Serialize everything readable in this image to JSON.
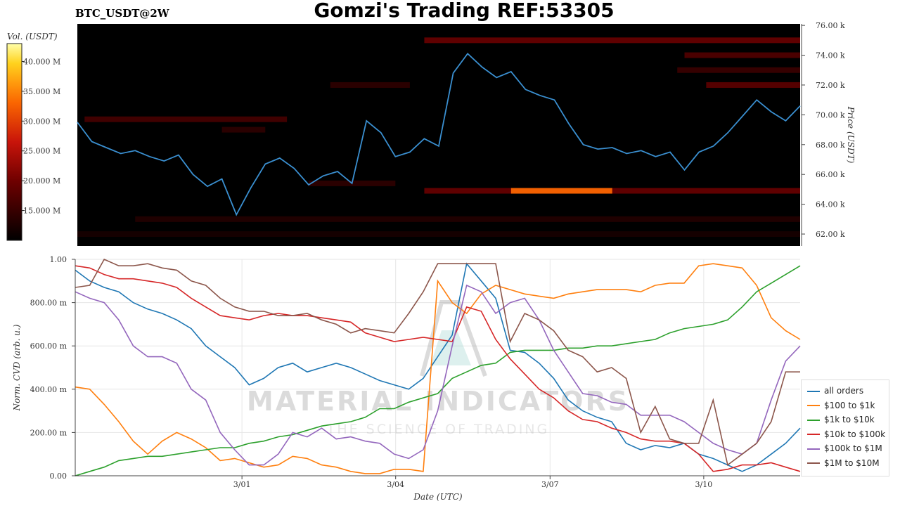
{
  "pair_label": "BTC_USDT@2W",
  "title": "Gomzi's Trading REF:53305",
  "watermark": {
    "main": "MATERIAL INDICATORS",
    "sub": "THE SCIENCE OF TRADING"
  },
  "colors": {
    "all_orders": "#1f77b4",
    "s100_1k": "#ff7f0e",
    "s1k_10k": "#2ca02c",
    "s10k_100k": "#d62728",
    "s100k_1m": "#9467bd",
    "s1m_10m": "#8c564b",
    "price_line": "#3a8fd0",
    "heatmap_bg": "#000000"
  },
  "chart_data": [
    {
      "type": "heatmap",
      "colorbar": {
        "label": "Vol. (USDT)",
        "ticks": [
          "40.000 M",
          "35.000 M",
          "30.000 M",
          "25.000 M",
          "20.000 M",
          "15.000 M"
        ],
        "range": [
          10,
          43
        ]
      },
      "ylabel": "Price (USDT)",
      "ylim": [
        61200,
        76100
      ],
      "y_ticks": [
        {
          "v": 76000,
          "label": "76.00 k"
        },
        {
          "v": 74000,
          "label": "74.00 k"
        },
        {
          "v": 72000,
          "label": "72.00 k"
        },
        {
          "v": 70000,
          "label": "70.00 k"
        },
        {
          "v": 68000,
          "label": "68.00 k"
        },
        {
          "v": 66000,
          "label": "66.00 k"
        },
        {
          "v": 64000,
          "label": "64.00 k"
        },
        {
          "v": 62000,
          "label": "62.00 k"
        }
      ],
      "xlim": [
        0,
        100
      ],
      "price_series": {
        "x": [
          0,
          2,
          4,
          6,
          8,
          10,
          12,
          14,
          16,
          18,
          20,
          22,
          24,
          26,
          28,
          30,
          32,
          34,
          36,
          38,
          40,
          42,
          44,
          46,
          48,
          50,
          52,
          54,
          56,
          58,
          60,
          62,
          64,
          66,
          68,
          70,
          72,
          74,
          76,
          78,
          80,
          82,
          84,
          86,
          88,
          90,
          92,
          94,
          96,
          98,
          100
        ],
        "y": [
          69500,
          68200,
          67800,
          67400,
          67600,
          67200,
          66900,
          67300,
          66000,
          65200,
          65700,
          63300,
          65100,
          66700,
          67100,
          66400,
          65300,
          65900,
          66200,
          65400,
          69600,
          68800,
          67200,
          67500,
          68400,
          67900,
          72800,
          74100,
          73200,
          72500,
          72900,
          71700,
          71300,
          71000,
          69400,
          68000,
          67700,
          67800,
          67400,
          67600,
          67200,
          67500,
          66300,
          67500,
          67900,
          68800,
          69900,
          71000,
          70200,
          69600,
          70600
        ]
      },
      "levels": [
        {
          "price": 75000,
          "x0": 48,
          "x1": 100,
          "vol": 19
        },
        {
          "price": 74000,
          "x0": 84,
          "x1": 100,
          "vol": 17
        },
        {
          "price": 73000,
          "x0": 83,
          "x1": 100,
          "vol": 15
        },
        {
          "price": 72000,
          "x0": 35,
          "x1": 46,
          "vol": 14
        },
        {
          "price": 72000,
          "x0": 87,
          "x1": 100,
          "vol": 18
        },
        {
          "price": 69700,
          "x0": 1,
          "x1": 29,
          "vol": 16
        },
        {
          "price": 69000,
          "x0": 20,
          "x1": 26,
          "vol": 14
        },
        {
          "price": 65400,
          "x0": 32,
          "x1": 44,
          "vol": 14
        },
        {
          "price": 64900,
          "x0": 48,
          "x1": 100,
          "vol": 19
        },
        {
          "price": 64900,
          "x0": 60,
          "x1": 74,
          "vol": 33
        },
        {
          "price": 63000,
          "x0": 8,
          "x1": 100,
          "vol": 13
        },
        {
          "price": 62000,
          "x0": 0,
          "x1": 100,
          "vol": 12
        }
      ]
    },
    {
      "type": "line",
      "ylabel": "Norm. CVD (arb. u.)",
      "xlabel": "Date (UTC)",
      "ylim": [
        0,
        1
      ],
      "xlim": [
        0,
        100
      ],
      "y_ticks": [
        {
          "v": 0.0,
          "label": "0.00"
        },
        {
          "v": 0.2,
          "label": "200.00 m"
        },
        {
          "v": 0.4,
          "label": "400.00 m"
        },
        {
          "v": 0.6,
          "label": "600.00 m"
        },
        {
          "v": 0.8,
          "label": "800.00 m"
        },
        {
          "v": 1.0,
          "label": "1.00"
        }
      ],
      "x_ticks": [
        {
          "v": 23,
          "label": "3/01"
        },
        {
          "v": 44.2,
          "label": "3/04"
        },
        {
          "v": 65.5,
          "label": "3/07"
        },
        {
          "v": 86.7,
          "label": "3/10"
        }
      ],
      "x": [
        0,
        2,
        4,
        6,
        8,
        10,
        12,
        14,
        16,
        18,
        20,
        22,
        24,
        26,
        28,
        30,
        32,
        34,
        36,
        38,
        40,
        42,
        44,
        46,
        48,
        50,
        52,
        54,
        56,
        58,
        60,
        62,
        64,
        66,
        68,
        70,
        72,
        74,
        76,
        78,
        80,
        82,
        84,
        86,
        88,
        90,
        92,
        94,
        96,
        98,
        100
      ],
      "series": [
        {
          "name": "all orders",
          "color_key": "all_orders",
          "values": [
            0.95,
            0.9,
            0.87,
            0.85,
            0.8,
            0.77,
            0.75,
            0.72,
            0.68,
            0.6,
            0.55,
            0.5,
            0.42,
            0.45,
            0.5,
            0.52,
            0.48,
            0.5,
            0.52,
            0.5,
            0.47,
            0.44,
            0.42,
            0.4,
            0.45,
            0.55,
            0.65,
            0.98,
            0.9,
            0.82,
            0.58,
            0.57,
            0.52,
            0.45,
            0.35,
            0.3,
            0.27,
            0.25,
            0.15,
            0.12,
            0.14,
            0.13,
            0.15,
            0.1,
            0.08,
            0.05,
            0.02,
            0.05,
            0.1,
            0.15,
            0.22
          ]
        },
        {
          "name": "$100 to $1k",
          "color_key": "s100_1k",
          "values": [
            0.41,
            0.4,
            0.33,
            0.25,
            0.16,
            0.1,
            0.16,
            0.2,
            0.17,
            0.13,
            0.07,
            0.08,
            0.06,
            0.04,
            0.05,
            0.09,
            0.08,
            0.05,
            0.04,
            0.02,
            0.01,
            0.01,
            0.03,
            0.03,
            0.02,
            0.9,
            0.8,
            0.75,
            0.84,
            0.88,
            0.86,
            0.84,
            0.83,
            0.82,
            0.84,
            0.85,
            0.86,
            0.86,
            0.86,
            0.85,
            0.88,
            0.89,
            0.89,
            0.97,
            0.98,
            0.97,
            0.96,
            0.88,
            0.73,
            0.67,
            0.63
          ]
        },
        {
          "name": "$1k to $10k",
          "color_key": "s1k_10k",
          "values": [
            0.0,
            0.02,
            0.04,
            0.07,
            0.08,
            0.09,
            0.09,
            0.1,
            0.11,
            0.12,
            0.13,
            0.13,
            0.15,
            0.16,
            0.18,
            0.19,
            0.21,
            0.23,
            0.24,
            0.25,
            0.27,
            0.31,
            0.31,
            0.34,
            0.36,
            0.38,
            0.45,
            0.48,
            0.51,
            0.52,
            0.57,
            0.58,
            0.58,
            0.58,
            0.59,
            0.59,
            0.6,
            0.6,
            0.61,
            0.62,
            0.63,
            0.66,
            0.68,
            0.69,
            0.7,
            0.72,
            0.78,
            0.85,
            0.89,
            0.93,
            0.97
          ]
        },
        {
          "name": "$10k to $100k",
          "color_key": "s10k_100k",
          "values": [
            0.97,
            0.96,
            0.93,
            0.91,
            0.91,
            0.9,
            0.89,
            0.87,
            0.82,
            0.78,
            0.74,
            0.73,
            0.72,
            0.74,
            0.75,
            0.74,
            0.74,
            0.73,
            0.72,
            0.71,
            0.66,
            0.64,
            0.62,
            0.63,
            0.64,
            0.63,
            0.62,
            0.78,
            0.76,
            0.63,
            0.54,
            0.47,
            0.4,
            0.36,
            0.3,
            0.26,
            0.25,
            0.22,
            0.2,
            0.17,
            0.16,
            0.16,
            0.15,
            0.1,
            0.02,
            0.03,
            0.05,
            0.05,
            0.06,
            0.04,
            0.02
          ]
        },
        {
          "name": "$100k to $1M",
          "color_key": "s100k_1m",
          "values": [
            0.85,
            0.82,
            0.8,
            0.72,
            0.6,
            0.55,
            0.55,
            0.52,
            0.4,
            0.35,
            0.2,
            0.12,
            0.05,
            0.05,
            0.1,
            0.2,
            0.18,
            0.22,
            0.17,
            0.18,
            0.16,
            0.15,
            0.1,
            0.08,
            0.12,
            0.3,
            0.6,
            0.88,
            0.85,
            0.75,
            0.8,
            0.82,
            0.72,
            0.58,
            0.48,
            0.38,
            0.37,
            0.34,
            0.33,
            0.28,
            0.28,
            0.28,
            0.25,
            0.2,
            0.15,
            0.12,
            0.1,
            0.15,
            0.35,
            0.53,
            0.6
          ]
        },
        {
          "name": "$1M to $10M",
          "color_key": "s1m_10m",
          "values": [
            0.87,
            0.88,
            1.0,
            0.97,
            0.97,
            0.98,
            0.96,
            0.95,
            0.9,
            0.88,
            0.82,
            0.78,
            0.76,
            0.76,
            0.74,
            0.74,
            0.75,
            0.72,
            0.7,
            0.66,
            0.68,
            0.67,
            0.66,
            0.75,
            0.85,
            0.98,
            0.98,
            0.98,
            0.98,
            0.98,
            0.62,
            0.75,
            0.72,
            0.67,
            0.58,
            0.55,
            0.48,
            0.5,
            0.45,
            0.2,
            0.32,
            0.17,
            0.15,
            0.15,
            0.35,
            0.05,
            0.1,
            0.15,
            0.25,
            0.48,
            0.48
          ]
        }
      ]
    }
  ]
}
